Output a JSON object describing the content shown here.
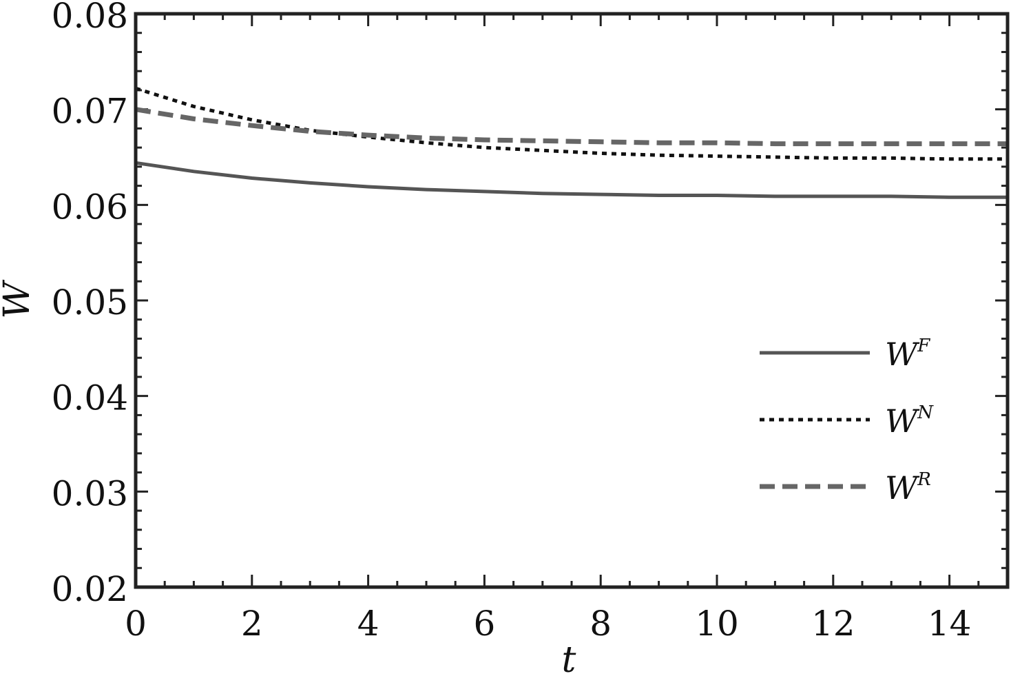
{
  "chart_data": {
    "type": "line",
    "title": "",
    "xlabel": "t",
    "ylabel": "W",
    "xlim": [
      0,
      15
    ],
    "ylim": [
      0.02,
      0.08
    ],
    "x_ticks": [
      0,
      2,
      4,
      6,
      8,
      10,
      12,
      14
    ],
    "x_tick_labels": [
      "0",
      "2",
      "4",
      "6",
      "8",
      "10",
      "12",
      "14"
    ],
    "y_ticks": [
      0.02,
      0.03,
      0.04,
      0.05,
      0.06,
      0.07,
      0.08
    ],
    "y_tick_labels": [
      "0.02",
      "0.03",
      "0.04",
      "0.05",
      "0.06",
      "0.07",
      "0.08"
    ],
    "grid": false,
    "legend_position": "right",
    "x": [
      0,
      1,
      2,
      3,
      4,
      5,
      6,
      7,
      8,
      9,
      10,
      11,
      12,
      13,
      14,
      15
    ],
    "series": [
      {
        "name": "W",
        "name_sup": "F",
        "style": "solid",
        "color": "#555555",
        "values": [
          0.0644,
          0.0635,
          0.0628,
          0.0623,
          0.0619,
          0.0616,
          0.0614,
          0.0612,
          0.0611,
          0.061,
          0.061,
          0.0609,
          0.0609,
          0.0609,
          0.0608,
          0.0608
        ]
      },
      {
        "name": "W",
        "name_sup": "N",
        "style": "dotted",
        "color": "#111111",
        "values": [
          0.0722,
          0.0703,
          0.0689,
          0.0678,
          0.0671,
          0.0665,
          0.066,
          0.0657,
          0.0654,
          0.0652,
          0.0651,
          0.065,
          0.0649,
          0.0649,
          0.0648,
          0.0648
        ]
      },
      {
        "name": "W",
        "name_sup": "R",
        "style": "dashed",
        "color": "#666666",
        "values": [
          0.07,
          0.069,
          0.0683,
          0.0677,
          0.0673,
          0.067,
          0.0668,
          0.0667,
          0.0666,
          0.0665,
          0.0665,
          0.0664,
          0.0664,
          0.0664,
          0.0664,
          0.0664
        ]
      }
    ]
  }
}
